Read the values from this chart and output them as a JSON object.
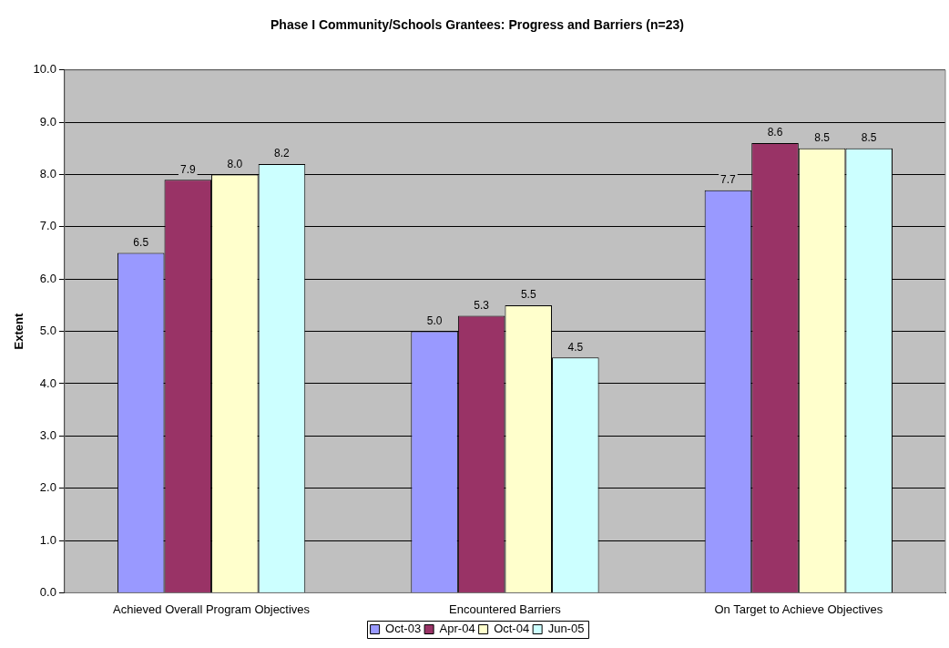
{
  "chart_data": {
    "type": "bar",
    "title": "Phase I Community/Schools Grantees: Progress and Barriers (n=23)",
    "ylabel": "Extent",
    "categories": [
      "Achieved Overall Program Objectives",
      "Encountered Barriers",
      "On Target to Achieve Objectives"
    ],
    "series": [
      {
        "name": "Oct-03",
        "color": "#9999ff",
        "values": [
          6.5,
          5.0,
          7.7
        ],
        "value_labels": [
          "6.5",
          "5.0",
          "7.7"
        ]
      },
      {
        "name": "Apr-04",
        "color": "#993366",
        "values": [
          7.9,
          5.3,
          8.6
        ],
        "value_labels": [
          "7.9",
          "5.3",
          "8.6"
        ]
      },
      {
        "name": "Oct-04",
        "color": "#ffffcc",
        "values": [
          8.0,
          5.5,
          8.5
        ],
        "value_labels": [
          "8.0",
          "5.5",
          "8.5"
        ]
      },
      {
        "name": "Jun-05",
        "color": "#ccffff",
        "values": [
          8.2,
          4.5,
          8.5
        ],
        "value_labels": [
          "8.2",
          "4.5",
          "8.5"
        ]
      }
    ],
    "ylim": [
      0,
      10
    ],
    "yticks": [
      {
        "value": 0,
        "label": "0.0"
      },
      {
        "value": 1,
        "label": "1.0"
      },
      {
        "value": 2,
        "label": "2.0"
      },
      {
        "value": 3,
        "label": "3.0"
      },
      {
        "value": 4,
        "label": "4.0"
      },
      {
        "value": 5,
        "label": "5.0"
      },
      {
        "value": 6,
        "label": "6.0"
      },
      {
        "value": 7,
        "label": "7.0"
      },
      {
        "value": 8,
        "label": "8.0"
      },
      {
        "value": 9,
        "label": "9.0"
      },
      {
        "value": 10,
        "label": "10.0"
      }
    ],
    "grid": "y",
    "legend": "bottom"
  }
}
